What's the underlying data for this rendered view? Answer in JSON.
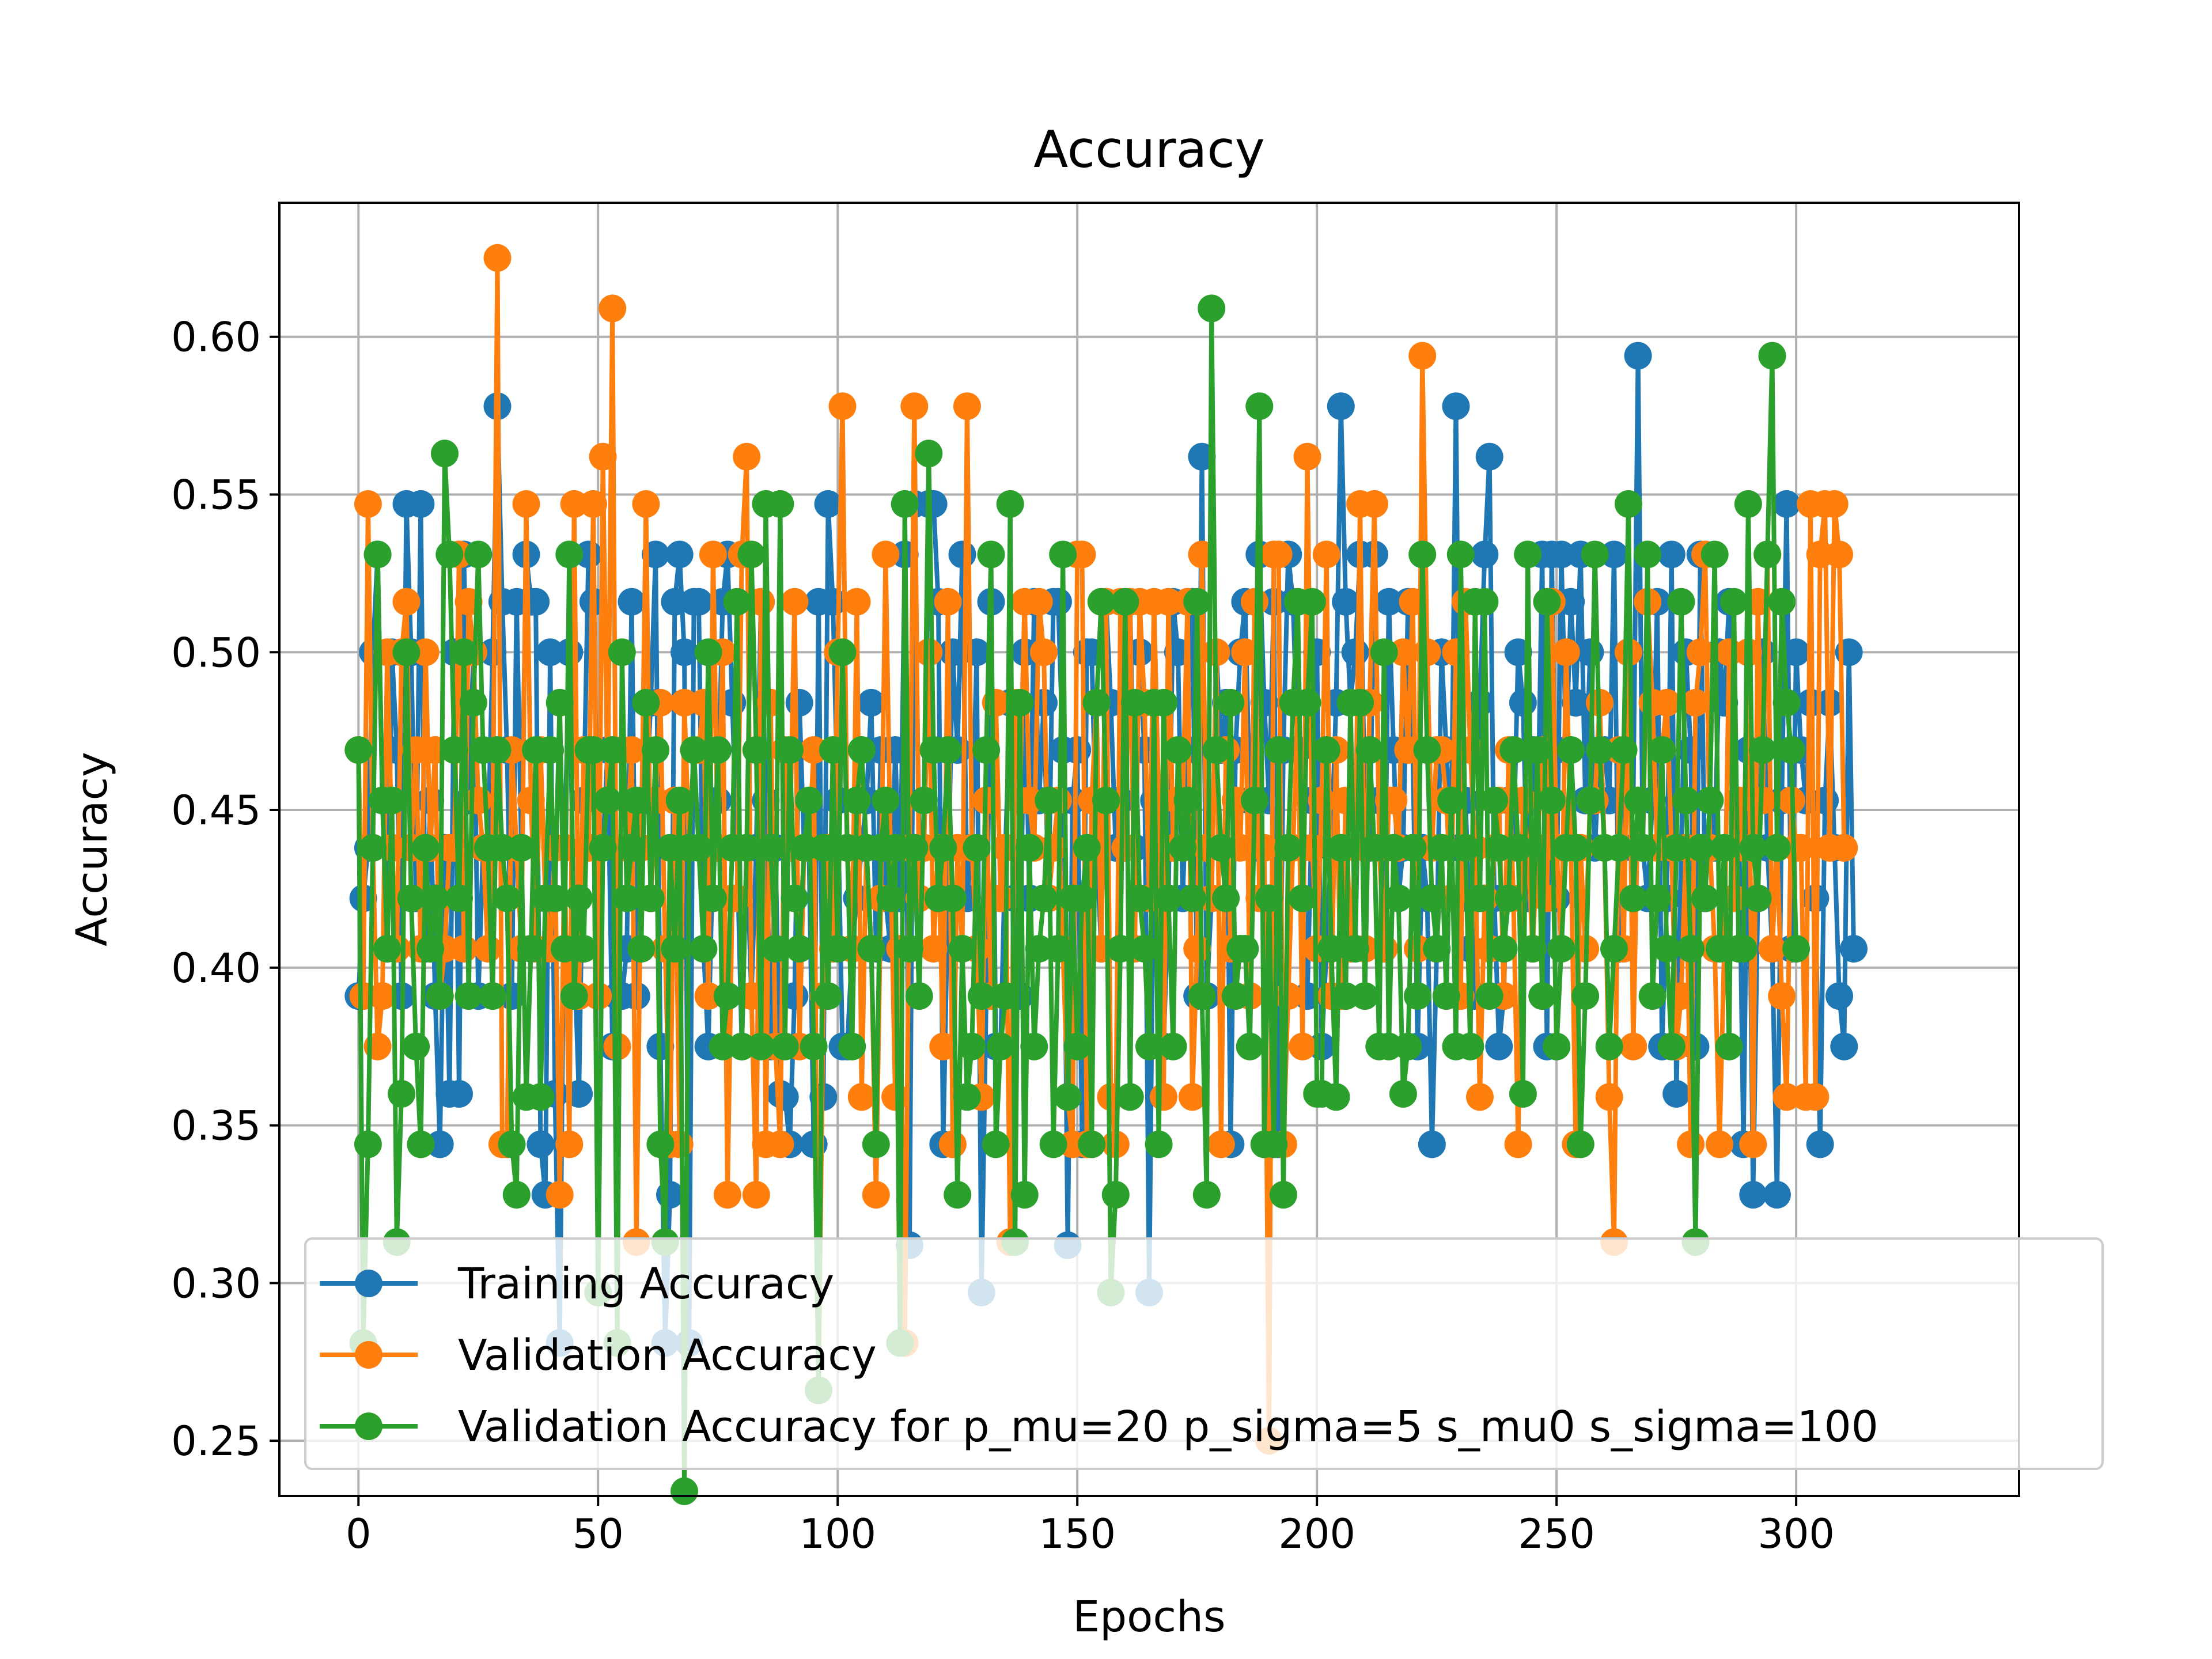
{
  "chart_data": {
    "type": "line",
    "title": "Accuracy",
    "xlabel": "Epochs",
    "ylabel": "Accuracy",
    "xlim": [
      -16.5,
      346.5
    ],
    "ylim": [
      0.2325,
      0.6425
    ],
    "xticks": [
      0,
      50,
      100,
      150,
      200,
      250,
      300
    ],
    "xtick_labels": [
      "0",
      "50",
      "100",
      "150",
      "200",
      "250",
      "300"
    ],
    "yticks": [
      0.25,
      0.3,
      0.35,
      0.4,
      0.45,
      0.5,
      0.55,
      0.6
    ],
    "ytick_labels": [
      "0.25",
      "0.30",
      "0.35",
      "0.40",
      "0.45",
      "0.50",
      "0.55",
      "0.60"
    ],
    "grid": true,
    "legend_position": "lower-left",
    "series": [
      {
        "name": "Training Accuracy",
        "color": "#1f77b4",
        "values": [
          0.391,
          0.422,
          0.438,
          0.5,
          0.531,
          0.453,
          0.406,
          0.5,
          0.469,
          0.391,
          0.547,
          0.5,
          0.422,
          0.547,
          0.406,
          0.453,
          0.391,
          0.344,
          0.438,
          0.36,
          0.5,
          0.36,
          0.531,
          0.453,
          0.5,
          0.391,
          0.438,
          0.438,
          0.5,
          0.578,
          0.516,
          0.469,
          0.391,
          0.516,
          0.438,
          0.531,
          0.516,
          0.516,
          0.344,
          0.328,
          0.5,
          0.36,
          0.281,
          0.438,
          0.5,
          0.406,
          0.36,
          0.453,
          0.531,
          0.516,
          0.438,
          0.438,
          0.469,
          0.375,
          0.391,
          0.391,
          0.406,
          0.516,
          0.391,
          0.453,
          0.453,
          0.484,
          0.531,
          0.375,
          0.281,
          0.328,
          0.516,
          0.531,
          0.5,
          0.281,
          0.516,
          0.516,
          0.406,
          0.375,
          0.438,
          0.453,
          0.516,
          0.531,
          0.484,
          0.438,
          0.375,
          0.438,
          0.391,
          0.438,
          0.516,
          0.453,
          0.375,
          0.438,
          0.36,
          0.359,
          0.344,
          0.391,
          0.484,
          0.438,
          0.438,
          0.344,
          0.516,
          0.359,
          0.547,
          0.516,
          0.453,
          0.375,
          0.375,
          0.406,
          0.422,
          0.438,
          0.453,
          0.484,
          0.406,
          0.469,
          0.422,
          0.406,
          0.469,
          0.422,
          0.531,
          0.312,
          0.547,
          0.438,
          0.438,
          0.547,
          0.547,
          0.516,
          0.344,
          0.422,
          0.5,
          0.469,
          0.531,
          0.422,
          0.438,
          0.5,
          0.297,
          0.391,
          0.516,
          0.375,
          0.375,
          0.438,
          0.484,
          0.422,
          0.391,
          0.5,
          0.422,
          0.516,
          0.453,
          0.484,
          0.422,
          0.516,
          0.516,
          0.469,
          0.312,
          0.453,
          0.469,
          0.344,
          0.5,
          0.5,
          0.438,
          0.406,
          0.516,
          0.484,
          0.438,
          0.453,
          0.438,
          0.516,
          0.438,
          0.5,
          0.469,
          0.297,
          0.453,
          0.422,
          0.375,
          0.422,
          0.516,
          0.5,
          0.422,
          0.469,
          0.516,
          0.391,
          0.562,
          0.391,
          0.422,
          0.5,
          0.469,
          0.484,
          0.344,
          0.469,
          0.5,
          0.516,
          0.453,
          0.438,
          0.531,
          0.484,
          0.453,
          0.516,
          0.344,
          0.469,
          0.531,
          0.516,
          0.469,
          0.438,
          0.391,
          0.453,
          0.5,
          0.375,
          0.406,
          0.438,
          0.484,
          0.578,
          0.516,
          0.484,
          0.5,
          0.531,
          0.453,
          0.438,
          0.531,
          0.453,
          0.406,
          0.516,
          0.469,
          0.422,
          0.438,
          0.516,
          0.469,
          0.375,
          0.438,
          0.422,
          0.344,
          0.406,
          0.5,
          0.469,
          0.438,
          0.578,
          0.422,
          0.453,
          0.406,
          0.391,
          0.484,
          0.531,
          0.562,
          0.422,
          0.375,
          0.391,
          0.453,
          0.438,
          0.5,
          0.484,
          0.422,
          0.469,
          0.438,
          0.531,
          0.375,
          0.531,
          0.422,
          0.531,
          0.469,
          0.516,
          0.484,
          0.531,
          0.453,
          0.5,
          0.438,
          0.469,
          0.469,
          0.453,
          0.531,
          0.406,
          0.438,
          0.5,
          0.453,
          0.594,
          0.438,
          0.422,
          0.453,
          0.516,
          0.375,
          0.422,
          0.531,
          0.36,
          0.438,
          0.5,
          0.469,
          0.375,
          0.531,
          0.422,
          0.453,
          0.438,
          0.5,
          0.484,
          0.516,
          0.438,
          0.453,
          0.344,
          0.469,
          0.328,
          0.422,
          0.5,
          0.438,
          0.406,
          0.328,
          0.453,
          0.547,
          0.406,
          0.5,
          0.469,
          0.453,
          0.484,
          0.422,
          0.344,
          0.453,
          0.484,
          0.438,
          0.391,
          0.375,
          0.5,
          0.406
        ]
      },
      {
        "name": "Validation Accuracy",
        "color": "#ff7f0e",
        "values": [
          0.469,
          0.391,
          0.547,
          0.438,
          0.375,
          0.391,
          0.5,
          0.438,
          0.406,
          0.5,
          0.516,
          0.438,
          0.469,
          0.406,
          0.5,
          0.438,
          0.469,
          0.391,
          0.406,
          0.438,
          0.438,
          0.531,
          0.406,
          0.516,
          0.5,
          0.453,
          0.438,
          0.406,
          0.438,
          0.625,
          0.344,
          0.344,
          0.469,
          0.438,
          0.406,
          0.547,
          0.453,
          0.406,
          0.469,
          0.422,
          0.406,
          0.438,
          0.328,
          0.438,
          0.344,
          0.547,
          0.391,
          0.469,
          0.438,
          0.547,
          0.391,
          0.562,
          0.453,
          0.609,
          0.375,
          0.469,
          0.438,
          0.469,
          0.313,
          0.438,
          0.547,
          0.422,
          0.453,
          0.484,
          0.406,
          0.344,
          0.453,
          0.344,
          0.484,
          0.438,
          0.469,
          0.469,
          0.484,
          0.391,
          0.531,
          0.438,
          0.5,
          0.328,
          0.422,
          0.422,
          0.531,
          0.562,
          0.391,
          0.328,
          0.516,
          0.344,
          0.484,
          0.375,
          0.344,
          0.469,
          0.438,
          0.516,
          0.375,
          0.438,
          0.438,
          0.469,
          0.266,
          0.391,
          0.438,
          0.406,
          0.5,
          0.578,
          0.438,
          0.406,
          0.516,
          0.359,
          0.438,
          0.406,
          0.328,
          0.422,
          0.531,
          0.438,
          0.359,
          0.406,
          0.281,
          0.438,
          0.578,
          0.422,
          0.438,
          0.5,
          0.406,
          0.438,
          0.375,
          0.516,
          0.344,
          0.438,
          0.406,
          0.578,
          0.438,
          0.406,
          0.359,
          0.453,
          0.391,
          0.484,
          0.422,
          0.438,
          0.313,
          0.484,
          0.453,
          0.516,
          0.453,
          0.438,
          0.516,
          0.5,
          0.422,
          0.438,
          0.453,
          0.406,
          0.359,
          0.344,
          0.531,
          0.531,
          0.344,
          0.453,
          0.484,
          0.406,
          0.516,
          0.359,
          0.344,
          0.516,
          0.438,
          0.516,
          0.406,
          0.516,
          0.484,
          0.422,
          0.516,
          0.453,
          0.359,
          0.516,
          0.438,
          0.453,
          0.453,
          0.516,
          0.359,
          0.406,
          0.531,
          0.438,
          0.422,
          0.5,
          0.344,
          0.469,
          0.406,
          0.453,
          0.438,
          0.5,
          0.391,
          0.516,
          0.422,
          0.438,
          0.25,
          0.531,
          0.531,
          0.344,
          0.391,
          0.438,
          0.484,
          0.375,
          0.562,
          0.438,
          0.406,
          0.453,
          0.531,
          0.391,
          0.469,
          0.391,
          0.453,
          0.406,
          0.438,
          0.547,
          0.406,
          0.484,
          0.547,
          0.438,
          0.406,
          0.453,
          0.453,
          0.438,
          0.5,
          0.469,
          0.516,
          0.406,
          0.594,
          0.5,
          0.438,
          0.469,
          0.469,
          0.453,
          0.422,
          0.5,
          0.391,
          0.516,
          0.469,
          0.438,
          0.359,
          0.422,
          0.406,
          0.438,
          0.453,
          0.391,
          0.469,
          0.422,
          0.344,
          0.453,
          0.438,
          0.406,
          0.438,
          0.469,
          0.422,
          0.516,
          0.438,
          0.406,
          0.5,
          0.438,
          0.344,
          0.438,
          0.406,
          0.453,
          0.453,
          0.484,
          0.438,
          0.359,
          0.313,
          0.469,
          0.406,
          0.5,
          0.375,
          0.453,
          0.438,
          0.516,
          0.484,
          0.438,
          0.469,
          0.484,
          0.438,
          0.375,
          0.391,
          0.438,
          0.344,
          0.484,
          0.5,
          0.531,
          0.438,
          0.406,
          0.344,
          0.406,
          0.5,
          0.422,
          0.453,
          0.438,
          0.5,
          0.344,
          0.516,
          0.453,
          0.531,
          0.406,
          0.438,
          0.391,
          0.359,
          0.453,
          0.438,
          0.438,
          0.359,
          0.547,
          0.359,
          0.531,
          0.547,
          0.438,
          0.547,
          0.531,
          0.438
        ]
      },
      {
        "name": "Validation Accuracy for p_mu=20 p_sigma=5 s_mu0 s_sigma=100",
        "color": "#2ca02c",
        "values": [
          0.469,
          0.281,
          0.344,
          0.438,
          0.531,
          0.453,
          0.406,
          0.453,
          0.313,
          0.36,
          0.5,
          0.422,
          0.375,
          0.344,
          0.438,
          0.406,
          0.422,
          0.391,
          0.563,
          0.531,
          0.469,
          0.422,
          0.5,
          0.391,
          0.484,
          0.531,
          0.469,
          0.438,
          0.391,
          0.469,
          0.438,
          0.422,
          0.344,
          0.328,
          0.438,
          0.359,
          0.406,
          0.469,
          0.359,
          0.422,
          0.469,
          0.422,
          0.484,
          0.406,
          0.531,
          0.391,
          0.422,
          0.406,
          0.469,
          0.469,
          0.297,
          0.438,
          0.453,
          0.469,
          0.281,
          0.5,
          0.422,
          0.438,
          0.453,
          0.406,
          0.484,
          0.422,
          0.469,
          0.344,
          0.313,
          0.438,
          0.406,
          0.453,
          0.234,
          0.438,
          0.469,
          0.438,
          0.406,
          0.5,
          0.422,
          0.469,
          0.375,
          0.391,
          0.438,
          0.516,
          0.375,
          0.438,
          0.531,
          0.469,
          0.375,
          0.547,
          0.438,
          0.406,
          0.547,
          0.375,
          0.469,
          0.422,
          0.406,
          0.438,
          0.453,
          0.375,
          0.266,
          0.438,
          0.391,
          0.469,
          0.406,
          0.5,
          0.438,
          0.375,
          0.453,
          0.469,
          0.438,
          0.406,
          0.344,
          0.438,
          0.453,
          0.422,
          0.438,
          0.281,
          0.547,
          0.406,
          0.438,
          0.391,
          0.453,
          0.563,
          0.469,
          0.422,
          0.438,
          0.469,
          0.422,
          0.328,
          0.406,
          0.359,
          0.375,
          0.438,
          0.391,
          0.469,
          0.531,
          0.344,
          0.375,
          0.391,
          0.547,
          0.313,
          0.484,
          0.328,
          0.438,
          0.375,
          0.406,
          0.422,
          0.453,
          0.344,
          0.406,
          0.531,
          0.359,
          0.422,
          0.375,
          0.422,
          0.438,
          0.344,
          0.484,
          0.516,
          0.453,
          0.297,
          0.328,
          0.406,
          0.516,
          0.359,
          0.484,
          0.422,
          0.406,
          0.375,
          0.484,
          0.344,
          0.484,
          0.422,
          0.375,
          0.469,
          0.438,
          0.453,
          0.422,
          0.516,
          0.391,
          0.328,
          0.609,
          0.469,
          0.438,
          0.422,
          0.484,
          0.391,
          0.406,
          0.406,
          0.375,
          0.453,
          0.578,
          0.344,
          0.422,
          0.344,
          0.469,
          0.328,
          0.438,
          0.484,
          0.516,
          0.422,
          0.484,
          0.516,
          0.36,
          0.36,
          0.469,
          0.406,
          0.359,
          0.438,
          0.391,
          0.484,
          0.406,
          0.484,
          0.391,
          0.469,
          0.438,
          0.375,
          0.5,
          0.375,
          0.438,
          0.422,
          0.36,
          0.375,
          0.438,
          0.391,
          0.531,
          0.469,
          0.422,
          0.406,
          0.438,
          0.391,
          0.453,
          0.375,
          0.531,
          0.438,
          0.375,
          0.516,
          0.422,
          0.516,
          0.391,
          0.453,
          0.438,
          0.406,
          0.422,
          0.469,
          0.438,
          0.36,
          0.531,
          0.406,
          0.469,
          0.391,
          0.516,
          0.453,
          0.375,
          0.406,
          0.438,
          0.469,
          0.438,
          0.344,
          0.391,
          0.453,
          0.531,
          0.469,
          0.438,
          0.375,
          0.406,
          0.438,
          0.469,
          0.547,
          0.422,
          0.453,
          0.438,
          0.531,
          0.391,
          0.422,
          0.469,
          0.406,
          0.375,
          0.438,
          0.516,
          0.453,
          0.406,
          0.313,
          0.438,
          0.422,
          0.453,
          0.531,
          0.406,
          0.438,
          0.375,
          0.516,
          0.406,
          0.406,
          0.547,
          0.438,
          0.422,
          0.469,
          0.531,
          0.594,
          0.438,
          0.516,
          0.484,
          0.469,
          0.406
        ]
      }
    ]
  }
}
